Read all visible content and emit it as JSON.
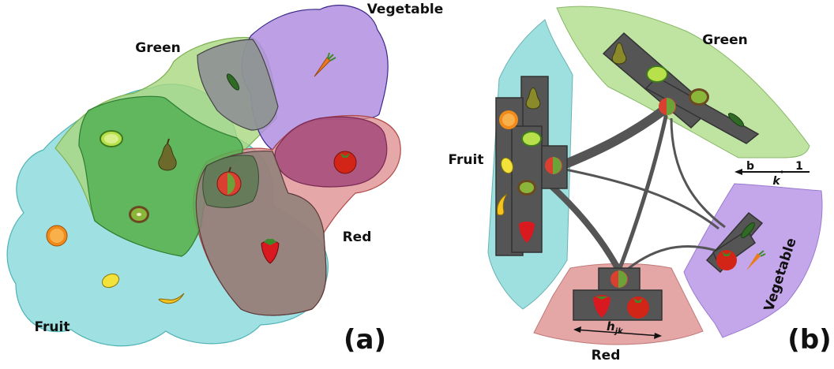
{
  "panel_a": {
    "label": "(a)",
    "sets": [
      {
        "name": "Fruit",
        "color": "#7fd6d8"
      },
      {
        "name": "Green",
        "color": "#a9d77f"
      },
      {
        "name": "Vegetable",
        "color": "#b08ee0"
      },
      {
        "name": "Red",
        "color": "#dc8a8a"
      }
    ],
    "items": [
      "cucumber",
      "carrot",
      "lime",
      "pear",
      "apple",
      "tomato",
      "kiwi",
      "orange",
      "strawberry",
      "lemon",
      "banana"
    ]
  },
  "panel_b": {
    "label": "(b)",
    "sets": [
      {
        "name": "Fruit",
        "color": "#9ee0e0"
      },
      {
        "name": "Green",
        "color": "#bfe3a0"
      },
      {
        "name": "Vegetable",
        "color": "#c4a6ea"
      },
      {
        "name": "Red",
        "color": "#e5a6a6"
      }
    ],
    "scale": {
      "b": "b",
      "one": "1",
      "k": "k"
    },
    "h_label": "h",
    "h_sub": "jk"
  }
}
